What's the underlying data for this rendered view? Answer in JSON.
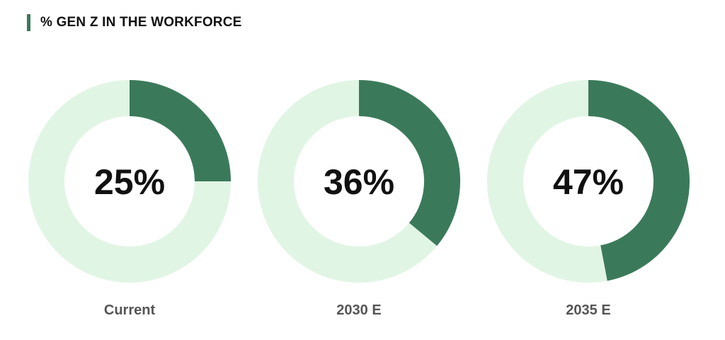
{
  "chart_data": {
    "type": "pie",
    "title": "% GEN Z IN THE WORKFORCE",
    "categories": [
      "Current",
      "2030 E",
      "2035 E"
    ],
    "values": [
      25,
      36,
      47
    ],
    "value_labels": [
      "25%",
      "36%",
      "47%"
    ],
    "unit": "%",
    "colors": {
      "filled": "#3a7a5a",
      "track": "#e1f5e4"
    }
  }
}
